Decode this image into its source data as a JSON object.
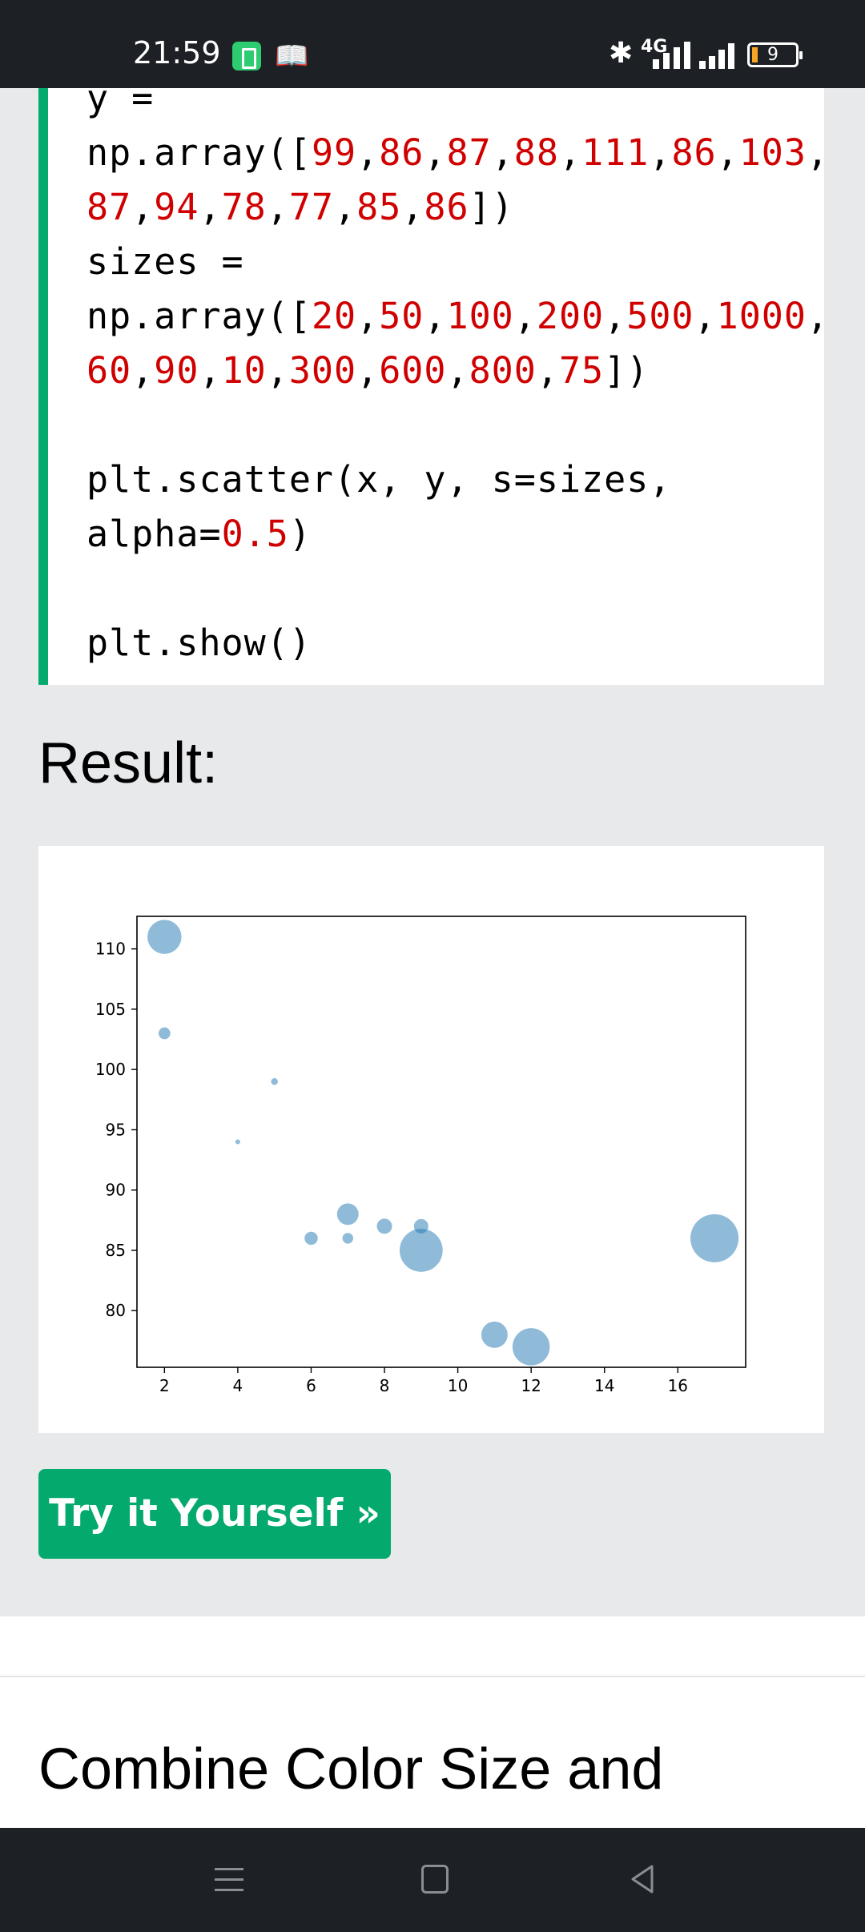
{
  "status_bar": {
    "time": "21:59",
    "network": "4G",
    "battery_level": "9",
    "icons": [
      "battery-saver-icon",
      "book-icon",
      "bluetooth-icon",
      "signal-icon",
      "battery-icon"
    ]
  },
  "code": {
    "lines": [
      [
        {
          "t": "y ="
        }
      ],
      [
        {
          "t": "np.array(["
        },
        {
          "t": "99",
          "n": 1
        },
        {
          "t": ","
        },
        {
          "t": "86",
          "n": 1
        },
        {
          "t": ","
        },
        {
          "t": "87",
          "n": 1
        },
        {
          "t": ","
        },
        {
          "t": "88",
          "n": 1
        },
        {
          "t": ","
        },
        {
          "t": "111",
          "n": 1
        },
        {
          "t": ","
        },
        {
          "t": "86",
          "n": 1
        },
        {
          "t": ","
        },
        {
          "t": "103",
          "n": 1
        },
        {
          "t": ","
        }
      ],
      [
        {
          "t": "87",
          "n": 1
        },
        {
          "t": ","
        },
        {
          "t": "94",
          "n": 1
        },
        {
          "t": ","
        },
        {
          "t": "78",
          "n": 1
        },
        {
          "t": ","
        },
        {
          "t": "77",
          "n": 1
        },
        {
          "t": ","
        },
        {
          "t": "85",
          "n": 1
        },
        {
          "t": ","
        },
        {
          "t": "86",
          "n": 1
        },
        {
          "t": "])"
        }
      ],
      [
        {
          "t": "sizes ="
        }
      ],
      [
        {
          "t": "np.array(["
        },
        {
          "t": "20",
          "n": 1
        },
        {
          "t": ","
        },
        {
          "t": "50",
          "n": 1
        },
        {
          "t": ","
        },
        {
          "t": "100",
          "n": 1
        },
        {
          "t": ","
        },
        {
          "t": "200",
          "n": 1
        },
        {
          "t": ","
        },
        {
          "t": "500",
          "n": 1
        },
        {
          "t": ","
        },
        {
          "t": "1000",
          "n": 1
        },
        {
          "t": ","
        }
      ],
      [
        {
          "t": "60",
          "n": 1
        },
        {
          "t": ","
        },
        {
          "t": "90",
          "n": 1
        },
        {
          "t": ","
        },
        {
          "t": "10",
          "n": 1
        },
        {
          "t": ","
        },
        {
          "t": "300",
          "n": 1
        },
        {
          "t": ","
        },
        {
          "t": "600",
          "n": 1
        },
        {
          "t": ","
        },
        {
          "t": "800",
          "n": 1
        },
        {
          "t": ","
        },
        {
          "t": "75",
          "n": 1
        },
        {
          "t": "])"
        }
      ],
      [],
      [
        {
          "t": "plt.scatter(x, y, s=sizes,"
        }
      ],
      [
        {
          "t": "alpha="
        },
        {
          "t": "0.5",
          "n": 1
        },
        {
          "t": ")"
        }
      ],
      [],
      [
        {
          "t": "plt.show()"
        }
      ]
    ]
  },
  "result_heading": "Result:",
  "chart_data": {
    "type": "scatter",
    "x": [
      5,
      7,
      8,
      7,
      2,
      17,
      2,
      9,
      4,
      11,
      12,
      9,
      6
    ],
    "y": [
      99,
      86,
      87,
      88,
      111,
      86,
      103,
      87,
      94,
      78,
      77,
      85,
      86
    ],
    "sizes": [
      20,
      50,
      100,
      200,
      500,
      1000,
      60,
      90,
      10,
      300,
      600,
      800,
      75
    ],
    "alpha": 0.5,
    "color": "#1f77b4",
    "xlim": [
      1.25,
      17.85
    ],
    "ylim": [
      75.3,
      112.7
    ],
    "x_ticks": [
      2,
      4,
      6,
      8,
      10,
      12,
      14,
      16
    ],
    "y_ticks": [
      80,
      85,
      90,
      95,
      100,
      105,
      110
    ],
    "grid": false,
    "title": "",
    "xlabel": "",
    "ylabel": ""
  },
  "try_button_label": "Try it Yourself »",
  "next_section_heading": "Combine Color Size and",
  "nav_bar": {
    "icons": [
      "menu-icon",
      "home-icon",
      "back-icon"
    ]
  }
}
